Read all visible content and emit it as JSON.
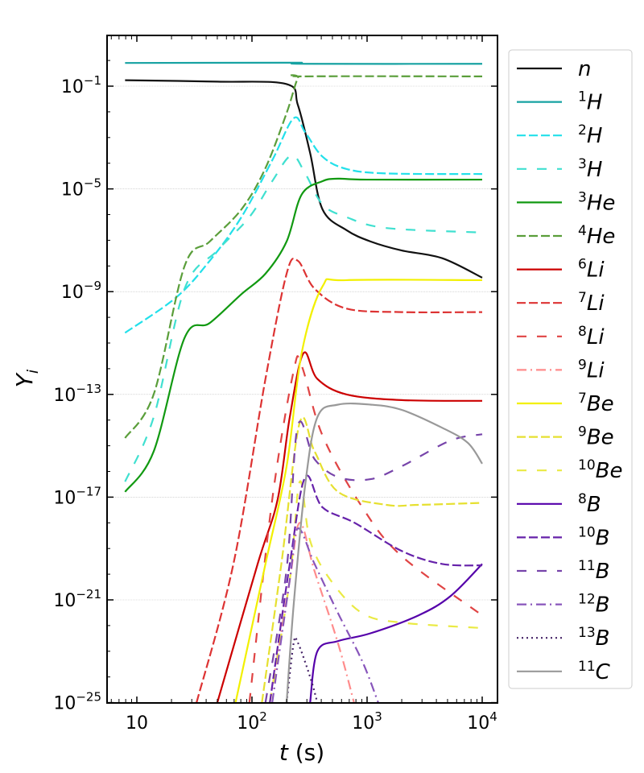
{
  "chart_data": {
    "type": "line",
    "xlabel": {
      "var": "t",
      "unit": " (s)"
    },
    "ylabel": {
      "base": "Y",
      "sub": "i"
    },
    "xscale": "log",
    "yscale": "log",
    "xlim": [
      5.5,
      14000
    ],
    "ylim": [
      1e-25,
      9
    ],
    "x_ticks": [
      {
        "value": 10,
        "base": "10",
        "exp": ""
      },
      {
        "value": 100,
        "base": "10",
        "exp": "2"
      },
      {
        "value": 1000,
        "base": "10",
        "exp": "3"
      },
      {
        "value": 10000,
        "base": "10",
        "exp": "4"
      }
    ],
    "y_ticks": [
      {
        "value": 0.1,
        "exp": "−1"
      },
      {
        "value": 1e-05,
        "exp": "−5"
      },
      {
        "value": 1e-09,
        "exp": "−9"
      },
      {
        "value": 1e-13,
        "exp": "−13"
      },
      {
        "value": 1e-17,
        "exp": "−17"
      },
      {
        "value": 1e-21,
        "exp": "−21"
      },
      {
        "value": 1e-25,
        "exp": "−25"
      }
    ],
    "grid": "horizontal, at labeled y ticks",
    "legend_position": "outside right",
    "series": [
      {
        "name": "n",
        "mass": "",
        "symbol": "n",
        "color": "#111111",
        "style": "solid",
        "t": [
          7.9,
          50,
          200,
          250,
          320,
          410,
          660,
          1070,
          2000,
          4500,
          10000
        ],
        "y": [
          0.17,
          0.15,
          0.12,
          0.019,
          0.00025,
          1.6e-06,
          2.5e-07,
          9e-08,
          4e-08,
          2e-08,
          3.5e-09
        ]
      },
      {
        "name": "1H",
        "mass": "1",
        "symbol": "H",
        "color": "#17a2a2",
        "style": "solid",
        "t": [
          7.9,
          200,
          250,
          300,
          10000
        ],
        "y": [
          0.8,
          0.82,
          0.8,
          0.74,
          0.74
        ]
      },
      {
        "name": "2H",
        "mass": "2",
        "symbol": "H",
        "color": "#22e0ea",
        "style": "dashed",
        "t": [
          7.9,
          22,
          43,
          81,
          150,
          230,
          290,
          410,
          660,
          1470,
          10000
        ],
        "y": [
          2.5e-11,
          6e-10,
          1.6e-08,
          8e-07,
          0.00013,
          0.0056,
          0.0016,
          0.00018,
          6e-05,
          4e-05,
          3.8e-05
        ]
      },
      {
        "name": "3H",
        "mass": "3",
        "symbol": "H",
        "color": "#40e0d0",
        "style": "loose",
        "t": [
          7.9,
          14,
          26,
          50,
          95,
          150,
          220,
          290,
          410,
          660,
          1470,
          10000
        ],
        "y": [
          4e-17,
          1.3e-14,
          1.3e-09,
          4e-08,
          8e-07,
          2e-05,
          0.0002,
          4e-05,
          2.5e-06,
          8e-07,
          3e-07,
          2e-07
        ]
      },
      {
        "name": "3He",
        "mass": "3",
        "symbol": "He",
        "color": "#119911",
        "style": "solid",
        "t": [
          7.9,
          14,
          26,
          43,
          81,
          131,
          200,
          270,
          410,
          560,
          1000,
          10000
        ],
        "y": [
          1.6e-17,
          6e-16,
          1.6e-11,
          6e-11,
          8e-10,
          5e-09,
          9e-08,
          6e-06,
          2e-05,
          2.5e-05,
          2.3e-05,
          2.3e-05
        ]
      },
      {
        "name": "4He",
        "mass": "4",
        "symbol": "He",
        "color": "#5a9e3a",
        "style": "dashed",
        "t": [
          7.9,
          14,
          26,
          43,
          81,
          130,
          200,
          250,
          290,
          10000
        ],
        "y": [
          2e-15,
          1e-13,
          1e-08,
          9e-08,
          1.6e-06,
          6e-05,
          0.009,
          0.2,
          0.24,
          0.24
        ]
      },
      {
        "name": "6Li",
        "mass": "6",
        "symbol": "Li",
        "color": "#cc0000",
        "style": "solid",
        "t": [
          50,
          112,
          167,
          213,
          280,
          370,
          660,
          2000,
          10000
        ],
        "y": [
          1e-25,
          2.5e-20,
          8e-18,
          1.3e-14,
          4e-12,
          4e-13,
          1e-13,
          6e-14,
          5.6e-14
        ]
      },
      {
        "name": "7Li",
        "mass": "7",
        "symbol": "Li",
        "color": "#dd3333",
        "style": "dashed",
        "t": [
          33,
          69,
          131,
          200,
          250,
          350,
          660,
          2000,
          10000
        ],
        "y": [
          1e-25,
          2.5e-20,
          4e-13,
          5e-09,
          1.6e-08,
          1.3e-09,
          2.2e-10,
          1.6e-10,
          1.6e-10
        ]
      },
      {
        "name": "8Li",
        "mass": "8",
        "symbol": "Li",
        "color": "#e04444",
        "style": "loose",
        "t": [
          95,
          150,
          230,
          270,
          410,
          910,
          2000,
          10000
        ],
        "y": [
          1e-25,
          8e-18,
          8e-13,
          1.3e-12,
          2.5e-15,
          4e-18,
          5e-20,
          2.5e-22
        ]
      },
      {
        "name": "9Li",
        "mass": "9",
        "symbol": "Li",
        "color": "#ff8c8c",
        "style": "dashdot",
        "t": [
          143,
          213,
          260,
          350,
          560,
          770
        ],
        "y": [
          1e-25,
          6e-21,
          1e-18,
          1.3e-20,
          2e-23,
          1e-25
        ]
      },
      {
        "name": "7Be",
        "mass": "7",
        "symbol": "Be",
        "color": "#f2f000",
        "style": "solid",
        "t": [
          72,
          131,
          200,
          270,
          410,
          660,
          10000
        ],
        "y": [
          1e-25,
          2.5e-20,
          1.6e-16,
          4e-12,
          1.6e-09,
          2.8e-09,
          2.8e-09
        ]
      },
      {
        "name": "9Be",
        "mass": "9",
        "symbol": "Be",
        "color": "#e6e030",
        "style": "dashed",
        "t": [
          122,
          180,
          260,
          350,
          560,
          1470,
          2800,
          10000
        ],
        "y": [
          1e-25,
          2.5e-20,
          8e-15,
          6e-16,
          1.6e-17,
          5e-18,
          5e-18,
          6e-18
        ]
      },
      {
        "name": "10Be",
        "mass": "10",
        "symbol": "Be",
        "color": "#eaea44",
        "style": "loose",
        "t": [
          143,
          213,
          260,
          320,
          480,
          910,
          2000,
          10000
        ],
        "y": [
          1e-25,
          6e-21,
          4e-17,
          2e-19,
          6e-21,
          3e-22,
          1.3e-22,
          8e-23
        ]
      },
      {
        "name": "8B",
        "mass": "8",
        "symbol": "B",
        "color": "#5500aa",
        "style": "solid",
        "t": [
          320,
          370,
          560,
          1070,
          2800,
          5300,
          10000
        ],
        "y": [
          1e-25,
          1e-23,
          2.5e-23,
          5e-23,
          2.5e-22,
          1.4e-21,
          2.5e-20
        ]
      },
      {
        "name": "10B",
        "mass": "10",
        "symbol": "B",
        "color": "#6622aa",
        "style": "dashed",
        "t": [
          143,
          213,
          290,
          410,
          780,
          2000,
          4500,
          10000
        ],
        "y": [
          1e-25,
          2.5e-20,
          6e-17,
          4e-18,
          1e-18,
          8e-20,
          2.5e-20,
          2.2e-20
        ]
      },
      {
        "name": "11B",
        "mass": "11",
        "symbol": "B",
        "color": "#7744aa",
        "style": "loose",
        "t": [
          131,
          200,
          250,
          350,
          560,
          1070,
          2000,
          5300,
          10000
        ],
        "y": [
          1e-25,
          1.6e-20,
          6e-15,
          3e-16,
          6e-17,
          5e-17,
          1.6e-16,
          1.6e-15,
          2.8e-15
        ]
      },
      {
        "name": "12B",
        "mass": "12",
        "symbol": "B",
        "color": "#8855bb",
        "style": "dashdot",
        "t": [
          150,
          213,
          250,
          350,
          560,
          910,
          1250
        ],
        "y": [
          1e-25,
          6e-21,
          6e-19,
          2.5e-20,
          3e-22,
          4e-24,
          1e-25
        ]
      },
      {
        "name": "13B",
        "mass": "13",
        "symbol": "B",
        "color": "#442266",
        "style": "dotted",
        "t": [
          200,
          230,
          250,
          320,
          370
        ],
        "y": [
          1e-25,
          2e-23,
          2.2e-23,
          1e-24,
          1e-25
        ]
      },
      {
        "name": "11C",
        "mass": "11",
        "symbol": "C",
        "color": "#999999",
        "style": "solid",
        "t": [
          200,
          230,
          290,
          370,
          560,
          1070,
          2000,
          4500,
          7500,
          10000
        ],
        "y": [
          1e-25,
          6e-22,
          3e-17,
          1.3e-14,
          4e-14,
          4e-14,
          2.5e-14,
          5e-15,
          1.3e-15,
          2e-16
        ]
      }
    ]
  }
}
